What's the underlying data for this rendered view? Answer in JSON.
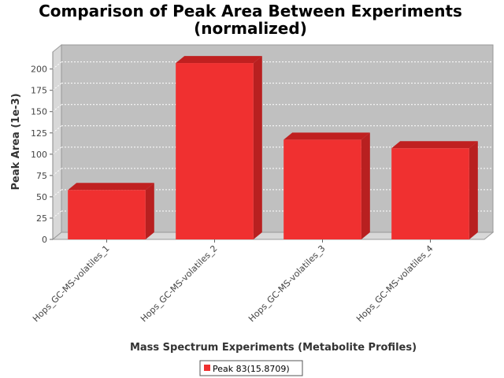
{
  "chart_data": {
    "type": "bar",
    "title_lines": [
      "Comparison of Peak Area Between Experiments",
      "(normalized)"
    ],
    "xlabel": "Mass Spectrum Experiments (Metabolite Profiles)",
    "ylabel": "Peak Area (1e-3)",
    "categories": [
      "Hops_GC-MS-volatiles_1",
      "Hops_GC-MS-volatiles_2",
      "Hops_GC-MS-volatiles_3",
      "Hops_GC-MS-volatiles_4"
    ],
    "series": [
      {
        "name": "Peak 83(15.8709)",
        "values": [
          58,
          207,
          117,
          107
        ],
        "color": "#f03030"
      }
    ],
    "ylim": [
      0,
      220
    ],
    "yticks": [
      0,
      25,
      50,
      75,
      100,
      125,
      150,
      175,
      200
    ],
    "grid": true,
    "legend_position": "bottom-center",
    "colors": {
      "plot_background": "#c0c0c0",
      "wall_side": "#d8d8d8",
      "bar_front": "#f03030",
      "bar_top": "#c02020",
      "bar_side": "#b82020"
    }
  }
}
